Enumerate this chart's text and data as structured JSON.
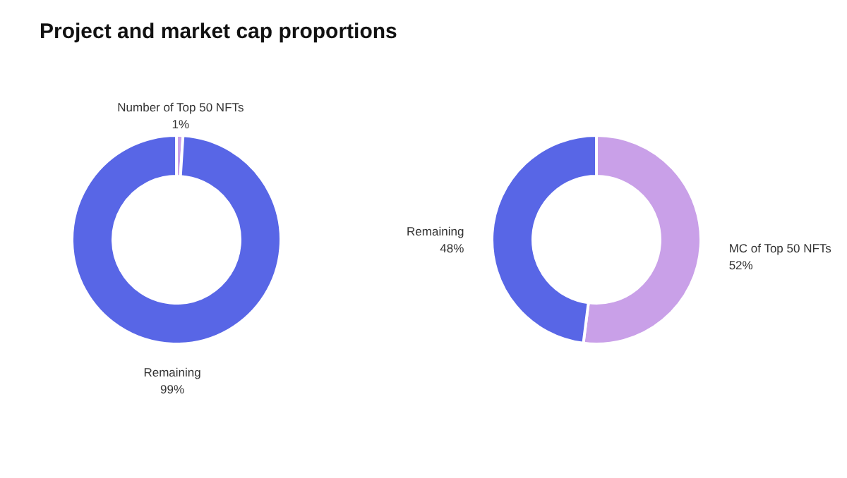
{
  "chart_data": [
    {
      "type": "donut",
      "title": "Project and market cap proportions",
      "categories": [
        "Number of Top 50 NFTs",
        "Remaining"
      ],
      "values": [
        1,
        99
      ],
      "colors": [
        "#c9a0e8",
        "#5866e6"
      ],
      "value_labels": [
        "1%",
        "99%"
      ]
    },
    {
      "type": "donut",
      "categories": [
        "MC of Top 50 NFTs",
        "Remaining"
      ],
      "values": [
        52,
        48
      ],
      "colors": [
        "#c9a0e8",
        "#5866e6"
      ],
      "value_labels": [
        "52%",
        "48%"
      ]
    }
  ]
}
